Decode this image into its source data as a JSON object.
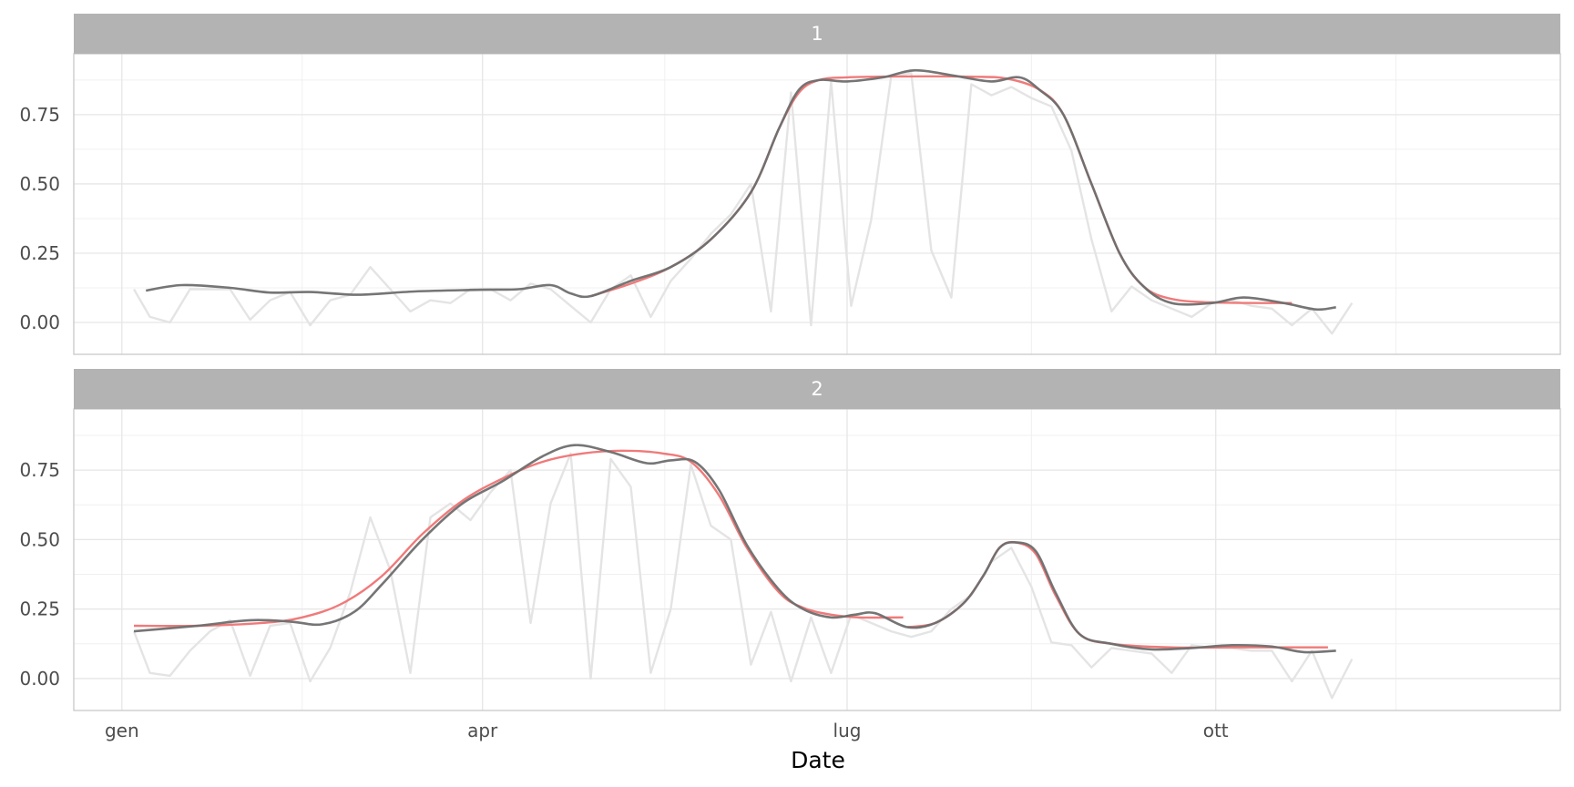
{
  "chart_data": {
    "type": "line",
    "xlabel": "Date",
    "x_ticks": [
      {
        "label": "gen",
        "date": "2019-01-01"
      },
      {
        "label": "apr",
        "date": "2019-04-01"
      },
      {
        "label": "lug",
        "date": "2019-07-01"
      },
      {
        "label": "ott",
        "date": "2019-10-01"
      }
    ],
    "y_ticks": [
      "0.00",
      "0.25",
      "0.50",
      "0.75"
    ],
    "y_tick_values": [
      0,
      0.25,
      0.5,
      0.75
    ],
    "xlim": [
      "2018-12-20",
      "2019-12-26"
    ],
    "ylim": [
      -0.115,
      0.97
    ],
    "grid": true,
    "colors": {
      "raw": "#e4e4e4",
      "fit": "#f07a7a",
      "smooth": "#6e6e6e",
      "strip_background": "#b3b3b3",
      "strip_text": "#ffffff",
      "grid": "#e6e6e6",
      "panel_border": "#c8c8c8"
    },
    "panels": [
      {
        "label": "1",
        "raw": [
          [
            "2019-01-04",
            0.12
          ],
          [
            "2019-01-08",
            0.02
          ],
          [
            "2019-01-13",
            0.0
          ],
          [
            "2019-01-18",
            0.12
          ],
          [
            "2019-01-23",
            0.12
          ],
          [
            "2019-01-28",
            0.12
          ],
          [
            "2019-02-02",
            0.01
          ],
          [
            "2019-02-07",
            0.08
          ],
          [
            "2019-02-12",
            0.11
          ],
          [
            "2019-02-17",
            -0.01
          ],
          [
            "2019-02-22",
            0.08
          ],
          [
            "2019-02-27",
            0.1
          ],
          [
            "2019-03-04",
            0.2
          ],
          [
            "2019-03-09",
            0.12
          ],
          [
            "2019-03-14",
            0.04
          ],
          [
            "2019-03-19",
            0.08
          ],
          [
            "2019-03-24",
            0.07
          ],
          [
            "2019-03-29",
            0.12
          ],
          [
            "2019-04-03",
            0.12
          ],
          [
            "2019-04-08",
            0.08
          ],
          [
            "2019-04-13",
            0.14
          ],
          [
            "2019-04-18",
            0.12
          ],
          [
            "2019-04-23",
            0.06
          ],
          [
            "2019-04-28",
            0.0
          ],
          [
            "2019-05-03",
            0.12
          ],
          [
            "2019-05-08",
            0.17
          ],
          [
            "2019-05-13",
            0.02
          ],
          [
            "2019-05-18",
            0.15
          ],
          [
            "2019-05-23",
            0.23
          ],
          [
            "2019-05-28",
            0.32
          ],
          [
            "2019-06-02",
            0.39
          ],
          [
            "2019-06-07",
            0.5
          ],
          [
            "2019-06-12",
            0.04
          ],
          [
            "2019-06-17",
            0.83
          ],
          [
            "2019-06-22",
            -0.01
          ],
          [
            "2019-06-27",
            0.87
          ],
          [
            "2019-07-02",
            0.06
          ],
          [
            "2019-07-07",
            0.37
          ],
          [
            "2019-07-12",
            0.89
          ],
          [
            "2019-07-17",
            0.9
          ],
          [
            "2019-07-22",
            0.26
          ],
          [
            "2019-07-27",
            0.09
          ],
          [
            "2019-08-01",
            0.86
          ],
          [
            "2019-08-06",
            0.82
          ],
          [
            "2019-08-11",
            0.85
          ],
          [
            "2019-08-16",
            0.81
          ],
          [
            "2019-08-21",
            0.78
          ],
          [
            "2019-08-26",
            0.62
          ],
          [
            "2019-08-31",
            0.3
          ],
          [
            "2019-09-05",
            0.04
          ],
          [
            "2019-09-10",
            0.13
          ],
          [
            "2019-09-15",
            0.08
          ],
          [
            "2019-09-20",
            0.05
          ],
          [
            "2019-09-25",
            0.02
          ],
          [
            "2019-09-30",
            0.07
          ],
          [
            "2019-10-05",
            0.08
          ],
          [
            "2019-10-10",
            0.06
          ],
          [
            "2019-10-15",
            0.05
          ],
          [
            "2019-10-20",
            -0.01
          ],
          [
            "2019-10-25",
            0.05
          ],
          [
            "2019-10-30",
            -0.04
          ],
          [
            "2019-11-04",
            0.07
          ]
        ],
        "fit": [
          [
            "2019-04-28",
            0.095
          ],
          [
            "2019-05-08",
            0.14
          ],
          [
            "2019-05-18",
            0.2
          ],
          [
            "2019-05-28",
            0.3
          ],
          [
            "2019-06-07",
            0.47
          ],
          [
            "2019-06-14",
            0.7
          ],
          [
            "2019-06-19",
            0.83
          ],
          [
            "2019-06-24",
            0.875
          ],
          [
            "2019-07-01",
            0.885
          ],
          [
            "2019-07-15",
            0.888
          ],
          [
            "2019-08-01",
            0.887
          ],
          [
            "2019-08-10",
            0.88
          ],
          [
            "2019-08-18",
            0.84
          ],
          [
            "2019-08-24",
            0.75
          ],
          [
            "2019-08-31",
            0.5
          ],
          [
            "2019-09-07",
            0.25
          ],
          [
            "2019-09-13",
            0.13
          ],
          [
            "2019-09-20",
            0.085
          ],
          [
            "2019-10-01",
            0.072
          ],
          [
            "2019-10-20",
            0.07
          ]
        ],
        "smooth": [
          [
            "2019-01-07",
            0.115
          ],
          [
            "2019-01-16",
            0.135
          ],
          [
            "2019-01-28",
            0.125
          ],
          [
            "2019-02-07",
            0.108
          ],
          [
            "2019-02-17",
            0.11
          ],
          [
            "2019-03-01",
            0.1
          ],
          [
            "2019-03-15",
            0.112
          ],
          [
            "2019-04-01",
            0.118
          ],
          [
            "2019-04-10",
            0.12
          ],
          [
            "2019-04-18",
            0.135
          ],
          [
            "2019-04-23",
            0.105
          ],
          [
            "2019-04-28",
            0.095
          ],
          [
            "2019-05-08",
            0.15
          ],
          [
            "2019-05-18",
            0.2
          ],
          [
            "2019-05-28",
            0.3
          ],
          [
            "2019-06-07",
            0.47
          ],
          [
            "2019-06-14",
            0.7
          ],
          [
            "2019-06-19",
            0.84
          ],
          [
            "2019-06-24",
            0.875
          ],
          [
            "2019-07-01",
            0.87
          ],
          [
            "2019-07-10",
            0.885
          ],
          [
            "2019-07-18",
            0.91
          ],
          [
            "2019-07-28",
            0.89
          ],
          [
            "2019-08-06",
            0.87
          ],
          [
            "2019-08-13",
            0.885
          ],
          [
            "2019-08-18",
            0.84
          ],
          [
            "2019-08-24",
            0.75
          ],
          [
            "2019-08-31",
            0.5
          ],
          [
            "2019-09-07",
            0.25
          ],
          [
            "2019-09-13",
            0.13
          ],
          [
            "2019-09-20",
            0.07
          ],
          [
            "2019-09-30",
            0.07
          ],
          [
            "2019-10-08",
            0.09
          ],
          [
            "2019-10-18",
            0.07
          ],
          [
            "2019-10-26",
            0.047
          ],
          [
            "2019-10-31",
            0.055
          ]
        ]
      },
      {
        "label": "2",
        "raw": [
          [
            "2019-01-04",
            0.17
          ],
          [
            "2019-01-08",
            0.02
          ],
          [
            "2019-01-13",
            0.01
          ],
          [
            "2019-01-18",
            0.1
          ],
          [
            "2019-01-23",
            0.17
          ],
          [
            "2019-01-28",
            0.21
          ],
          [
            "2019-02-02",
            0.01
          ],
          [
            "2019-02-07",
            0.19
          ],
          [
            "2019-02-12",
            0.2
          ],
          [
            "2019-02-17",
            -0.01
          ],
          [
            "2019-02-22",
            0.11
          ],
          [
            "2019-02-27",
            0.31
          ],
          [
            "2019-03-04",
            0.58
          ],
          [
            "2019-03-09",
            0.39
          ],
          [
            "2019-03-14",
            0.02
          ],
          [
            "2019-03-19",
            0.58
          ],
          [
            "2019-03-24",
            0.63
          ],
          [
            "2019-03-29",
            0.57
          ],
          [
            "2019-04-03",
            0.67
          ],
          [
            "2019-04-08",
            0.75
          ],
          [
            "2019-04-13",
            0.2
          ],
          [
            "2019-04-18",
            0.63
          ],
          [
            "2019-04-23",
            0.81
          ],
          [
            "2019-04-28",
            0.0
          ],
          [
            "2019-05-03",
            0.79
          ],
          [
            "2019-05-08",
            0.69
          ],
          [
            "2019-05-13",
            0.02
          ],
          [
            "2019-05-18",
            0.25
          ],
          [
            "2019-05-23",
            0.77
          ],
          [
            "2019-05-28",
            0.55
          ],
          [
            "2019-06-02",
            0.5
          ],
          [
            "2019-06-07",
            0.05
          ],
          [
            "2019-06-12",
            0.24
          ],
          [
            "2019-06-17",
            -0.01
          ],
          [
            "2019-06-22",
            0.22
          ],
          [
            "2019-06-27",
            0.02
          ],
          [
            "2019-07-02",
            0.23
          ],
          [
            "2019-07-07",
            0.2
          ],
          [
            "2019-07-12",
            0.17
          ],
          [
            "2019-07-17",
            0.15
          ],
          [
            "2019-07-22",
            0.17
          ],
          [
            "2019-07-27",
            0.25
          ],
          [
            "2019-08-01",
            0.3
          ],
          [
            "2019-08-06",
            0.42
          ],
          [
            "2019-08-11",
            0.47
          ],
          [
            "2019-08-16",
            0.33
          ],
          [
            "2019-08-21",
            0.13
          ],
          [
            "2019-08-26",
            0.12
          ],
          [
            "2019-08-31",
            0.04
          ],
          [
            "2019-09-05",
            0.11
          ],
          [
            "2019-09-10",
            0.1
          ],
          [
            "2019-09-15",
            0.09
          ],
          [
            "2019-09-20",
            0.02
          ],
          [
            "2019-09-25",
            0.12
          ],
          [
            "2019-09-30",
            0.11
          ],
          [
            "2019-10-05",
            0.11
          ],
          [
            "2019-10-10",
            0.1
          ],
          [
            "2019-10-15",
            0.1
          ],
          [
            "2019-10-20",
            -0.01
          ],
          [
            "2019-10-25",
            0.1
          ],
          [
            "2019-10-30",
            -0.07
          ],
          [
            "2019-11-04",
            0.07
          ]
        ],
        "fit": [
          [
            "2019-01-04",
            0.19
          ],
          [
            "2019-01-20",
            0.19
          ],
          [
            "2019-02-05",
            0.2
          ],
          [
            "2019-02-15",
            0.22
          ],
          [
            "2019-02-25",
            0.27
          ],
          [
            "2019-03-07",
            0.37
          ],
          [
            "2019-03-17",
            0.52
          ],
          [
            "2019-03-27",
            0.64
          ],
          [
            "2019-04-06",
            0.72
          ],
          [
            "2019-04-16",
            0.78
          ],
          [
            "2019-04-26",
            0.81
          ],
          [
            "2019-05-06",
            0.82
          ],
          [
            "2019-05-16",
            0.81
          ],
          [
            "2019-05-23",
            0.78
          ],
          [
            "2019-05-30",
            0.66
          ],
          [
            "2019-06-06",
            0.47
          ],
          [
            "2019-06-14",
            0.31
          ],
          [
            "2019-06-20",
            0.255
          ],
          [
            "2019-06-27",
            0.23
          ],
          [
            "2019-07-04",
            0.22
          ],
          [
            "2019-07-15",
            0.22
          ]
        ],
        "fit2": [
          [
            "2019-07-16",
            0.185
          ],
          [
            "2019-07-23",
            0.2
          ],
          [
            "2019-07-30",
            0.27
          ],
          [
            "2019-08-04",
            0.37
          ],
          [
            "2019-08-08",
            0.47
          ],
          [
            "2019-08-12",
            0.49
          ],
          [
            "2019-08-17",
            0.45
          ],
          [
            "2019-08-22",
            0.3
          ],
          [
            "2019-08-28",
            0.16
          ],
          [
            "2019-09-05",
            0.125
          ],
          [
            "2019-09-20",
            0.112
          ],
          [
            "2019-10-05",
            0.112
          ],
          [
            "2019-10-29",
            0.112
          ]
        ],
        "smooth": [
          [
            "2019-01-04",
            0.17
          ],
          [
            "2019-01-20",
            0.19
          ],
          [
            "2019-02-02",
            0.21
          ],
          [
            "2019-02-12",
            0.205
          ],
          [
            "2019-02-20",
            0.195
          ],
          [
            "2019-02-28",
            0.24
          ],
          [
            "2019-03-07",
            0.34
          ],
          [
            "2019-03-17",
            0.5
          ],
          [
            "2019-03-27",
            0.63
          ],
          [
            "2019-04-06",
            0.71
          ],
          [
            "2019-04-16",
            0.8
          ],
          [
            "2019-04-24",
            0.84
          ],
          [
            "2019-05-03",
            0.815
          ],
          [
            "2019-05-12",
            0.775
          ],
          [
            "2019-05-18",
            0.785
          ],
          [
            "2019-05-24",
            0.78
          ],
          [
            "2019-05-30",
            0.68
          ],
          [
            "2019-06-06",
            0.48
          ],
          [
            "2019-06-14",
            0.32
          ],
          [
            "2019-06-20",
            0.25
          ],
          [
            "2019-06-27",
            0.22
          ],
          [
            "2019-07-03",
            0.23
          ],
          [
            "2019-07-08",
            0.235
          ],
          [
            "2019-07-16",
            0.185
          ],
          [
            "2019-07-23",
            0.2
          ],
          [
            "2019-07-30",
            0.27
          ],
          [
            "2019-08-04",
            0.37
          ],
          [
            "2019-08-08",
            0.47
          ],
          [
            "2019-08-12",
            0.49
          ],
          [
            "2019-08-17",
            0.46
          ],
          [
            "2019-08-22",
            0.31
          ],
          [
            "2019-08-28",
            0.16
          ],
          [
            "2019-09-05",
            0.125
          ],
          [
            "2019-09-15",
            0.105
          ],
          [
            "2019-09-25",
            0.11
          ],
          [
            "2019-10-05",
            0.12
          ],
          [
            "2019-10-15",
            0.115
          ],
          [
            "2019-10-23",
            0.095
          ],
          [
            "2019-10-31",
            0.1
          ]
        ]
      }
    ]
  }
}
